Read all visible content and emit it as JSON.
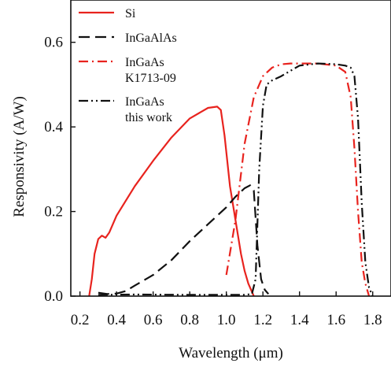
{
  "chart_data": {
    "type": "line",
    "title": "",
    "xlabel": "Wavelength (μm)",
    "ylabel": "Responsivity (A/W)",
    "xlim": [
      0.15,
      1.9
    ],
    "ylim": [
      0.0,
      0.7
    ],
    "xticks": [
      0.2,
      0.4,
      0.6,
      0.8,
      1.0,
      1.2,
      1.4,
      1.6,
      1.8
    ],
    "xtick_labels": [
      "0.2",
      "0.4",
      "0.6",
      "0.8",
      "1.0",
      "1.2",
      "1.4",
      "1.6",
      "1.8"
    ],
    "yticks": [
      0.0,
      0.2,
      0.4,
      0.6
    ],
    "ytick_labels": [
      "0.0",
      "0.2",
      "0.4",
      "0.6"
    ],
    "grid": false,
    "legend_position": "top-left",
    "series": [
      {
        "name": "Si",
        "color": "#e8231e",
        "dash": "solid",
        "x": [
          0.25,
          0.265,
          0.28,
          0.3,
          0.32,
          0.34,
          0.36,
          0.4,
          0.5,
          0.6,
          0.7,
          0.8,
          0.9,
          0.95,
          0.97,
          0.99,
          1.02,
          1.05,
          1.08,
          1.1,
          1.12,
          1.15
        ],
        "y": [
          0.0,
          0.04,
          0.1,
          0.135,
          0.143,
          0.138,
          0.15,
          0.19,
          0.26,
          0.32,
          0.375,
          0.42,
          0.445,
          0.448,
          0.44,
          0.38,
          0.26,
          0.18,
          0.1,
          0.06,
          0.03,
          0.0
        ]
      },
      {
        "name": "InGaAlAs",
        "color": "#111111",
        "dash": "dash",
        "x": [
          0.3,
          0.35,
          0.4,
          0.45,
          0.5,
          0.6,
          0.7,
          0.8,
          0.9,
          1.0,
          1.05,
          1.1,
          1.13,
          1.15,
          1.17,
          1.19,
          1.21,
          1.23
        ],
        "y": [
          0.008,
          0.005,
          0.006,
          0.012,
          0.025,
          0.05,
          0.085,
          0.13,
          0.17,
          0.21,
          0.235,
          0.255,
          0.262,
          0.25,
          0.12,
          0.04,
          0.015,
          0.005
        ]
      },
      {
        "name": "InGaAs K1713-09",
        "color": "#e8231e",
        "dash": "dashdot",
        "x": [
          1.0,
          1.05,
          1.1,
          1.15,
          1.2,
          1.25,
          1.3,
          1.35,
          1.4,
          1.5,
          1.6,
          1.65,
          1.68,
          1.7,
          1.72,
          1.74,
          1.76,
          1.78
        ],
        "y": [
          0.05,
          0.18,
          0.36,
          0.47,
          0.52,
          0.54,
          0.548,
          0.55,
          0.55,
          0.55,
          0.545,
          0.53,
          0.47,
          0.35,
          0.2,
          0.08,
          0.03,
          0.0
        ]
      },
      {
        "name": "InGaAs this work",
        "color": "#111111",
        "dash": "dashdotdot",
        "x": [
          0.3,
          0.5,
          0.8,
          1.0,
          1.1,
          1.14,
          1.16,
          1.18,
          1.2,
          1.22,
          1.25,
          1.3,
          1.4,
          1.5,
          1.6,
          1.65,
          1.68,
          1.7,
          1.72,
          1.74,
          1.76,
          1.78,
          1.8
        ],
        "y": [
          0.003,
          0.004,
          0.003,
          0.003,
          0.003,
          0.005,
          0.04,
          0.3,
          0.45,
          0.5,
          0.51,
          0.52,
          0.545,
          0.55,
          0.548,
          0.545,
          0.54,
          0.52,
          0.42,
          0.22,
          0.08,
          0.02,
          0.0
        ]
      }
    ],
    "legend": [
      {
        "lines": [
          "Si"
        ]
      },
      {
        "lines": [
          "InGaAlAs"
        ]
      },
      {
        "lines": [
          "InGaAs",
          "K1713-09"
        ]
      },
      {
        "lines": [
          "InGaAs",
          "this work"
        ]
      }
    ]
  }
}
